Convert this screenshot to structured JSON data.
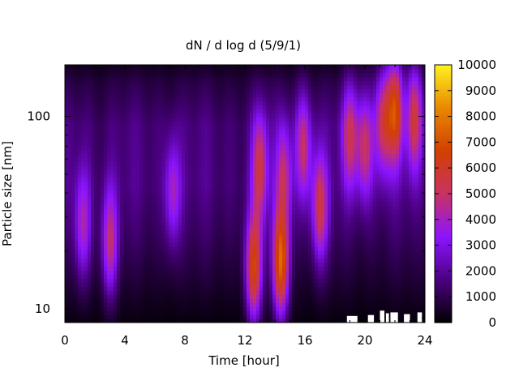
{
  "chart_data": {
    "type": "heatmap",
    "title": "dN / d log d (5/9/1)",
    "xlabel": "Time [hour]",
    "ylabel": "Particle size [nm]",
    "xlim": [
      0,
      24
    ],
    "ylim": [
      8.5,
      185
    ],
    "y_scale": "log",
    "x_ticks": [
      0,
      4,
      8,
      12,
      16,
      20,
      24
    ],
    "y_ticks": [
      10,
      100
    ],
    "colorbar": {
      "range": [
        0,
        10000
      ],
      "ticks": [
        0,
        1000,
        2000,
        3000,
        4000,
        5000,
        6000,
        7000,
        8000,
        9000,
        10000
      ],
      "colormap": [
        "#000000",
        "#4a0080",
        "#8b14ff",
        "#c83264",
        "#d24000",
        "#e88800",
        "#fff020"
      ]
    },
    "background_level": {
      "size_nm": [
        [
          8.5,
          200
        ],
        [
          12,
          600
        ],
        [
          25,
          1500
        ],
        [
          45,
          2000
        ],
        [
          90,
          1900
        ],
        [
          150,
          1100
        ],
        [
          185,
          500
        ]
      ]
    },
    "events": [
      {
        "time_h": 1.2,
        "size_nm": 27,
        "peak": 4600
      },
      {
        "time_h": 3.0,
        "size_nm": 22,
        "peak": 5200
      },
      {
        "time_h": 7.2,
        "size_nm": 40,
        "peak": 4700
      },
      {
        "time_h": 12.6,
        "size_nm": 16,
        "peak": 6800
      },
      {
        "time_h": 13.0,
        "size_nm": 55,
        "peak": 5800
      },
      {
        "time_h": 14.4,
        "size_nm": 17,
        "peak": 7600
      },
      {
        "time_h": 14.6,
        "size_nm": 50,
        "peak": 5200
      },
      {
        "time_h": 15.9,
        "size_nm": 70,
        "peak": 5400
      },
      {
        "time_h": 17.0,
        "size_nm": 33,
        "peak": 5800
      },
      {
        "time_h": 19.0,
        "size_nm": 80,
        "peak": 5600
      },
      {
        "time_h": 20.0,
        "size_nm": 70,
        "peak": 5600
      },
      {
        "time_h": 21.2,
        "size_nm": 95,
        "peak": 5800
      },
      {
        "time_h": 22.0,
        "size_nm": 110,
        "peak": 6800
      },
      {
        "time_h": 23.3,
        "size_nm": 100,
        "peak": 5900
      }
    ],
    "missing_bins": [
      {
        "time_h": [
          18.8,
          19.5
        ],
        "size_nm_max": 9.2
      },
      {
        "time_h": [
          20.2,
          20.6
        ],
        "size_nm_max": 9.3
      },
      {
        "time_h": [
          21.0,
          21.3
        ],
        "size_nm_max": 9.8
      },
      {
        "time_h": [
          21.4,
          21.6
        ],
        "size_nm_max": 9.5
      },
      {
        "time_h": [
          21.7,
          22.2
        ],
        "size_nm_max": 9.6
      },
      {
        "time_h": [
          22.6,
          23.0
        ],
        "size_nm_max": 9.4
      },
      {
        "time_h": [
          23.5,
          23.8
        ],
        "size_nm_max": 9.6
      }
    ]
  }
}
